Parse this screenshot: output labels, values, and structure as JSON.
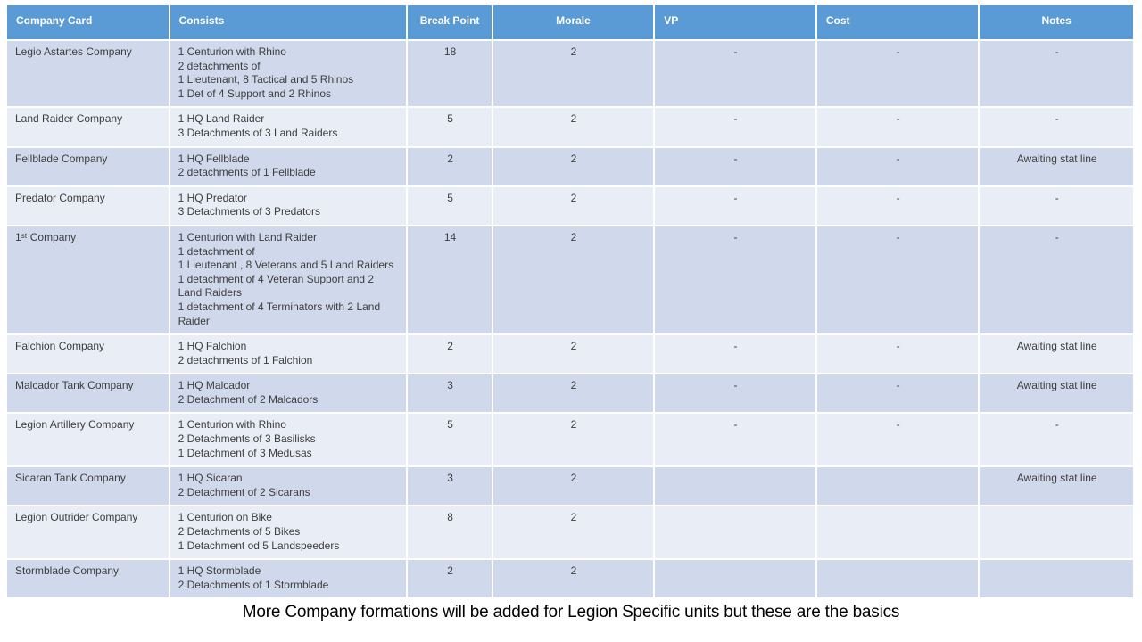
{
  "table": {
    "columns": [
      "Company Card",
      "Consists",
      "Break Point",
      "Morale",
      "VP",
      "Cost",
      "Notes"
    ],
    "rows": [
      {
        "company": "Legio Astartes Company",
        "consists": "1 Centurion with Rhino\n2 detachments of\n1 Lieutenant, 8 Tactical and 5 Rhinos\n1 Det of 4 Support and 2 Rhinos",
        "break_point": "18",
        "morale": "2",
        "vp": "-",
        "cost": "-",
        "notes": "-"
      },
      {
        "company": "Land Raider Company",
        "consists": "1 HQ Land Raider\n3 Detachments of 3 Land Raiders",
        "break_point": "5",
        "morale": "2",
        "vp": "-",
        "cost": "-",
        "notes": "-"
      },
      {
        "company": "Fellblade Company",
        "consists": "1 HQ Fellblade\n2 detachments of 1 Fellblade",
        "break_point": "2",
        "morale": "2",
        "vp": "-",
        "cost": "-",
        "notes": "Awaiting stat line"
      },
      {
        "company": "Predator Company",
        "consists": "1 HQ Predator\n3 Detachments of 3 Predators",
        "break_point": "5",
        "morale": "2",
        "vp": "-",
        "cost": "-",
        "notes": "-"
      },
      {
        "company": "1ˢᵗ Company",
        "consists": "1 Centurion with Land Raider\n1 detachment of\n1 Lieutenant , 8 Veterans and 5 Land Raiders\n1 detachment of 4 Veteran Support and 2 Land Raiders\n1 detachment of 4 Terminators with 2 Land Raider",
        "break_point": "14",
        "morale": "2",
        "vp": "-",
        "cost": "-",
        "notes": "-"
      },
      {
        "company": "Falchion Company",
        "consists": "1 HQ Falchion\n2 detachments of 1 Falchion",
        "break_point": "2",
        "morale": "2",
        "vp": "-",
        "cost": "-",
        "notes": "Awaiting stat line"
      },
      {
        "company": "Malcador Tank Company",
        "consists": "1 HQ Malcador\n2 Detachment of 2 Malcadors",
        "break_point": "3",
        "morale": "2",
        "vp": "-",
        "cost": "-",
        "notes": "Awaiting stat line"
      },
      {
        "company": "Legion Artillery Company",
        "consists": "1 Centurion with Rhino\n2 Detachments of 3 Basilisks\n1 Detachment of 3 Medusas",
        "break_point": "5",
        "morale": "2",
        "vp": "-",
        "cost": "-",
        "notes": "-"
      },
      {
        "company": "Sicaran Tank Company",
        "consists": "1 HQ Sicaran\n2 Detachment of 2 Sicarans",
        "break_point": "3",
        "morale": "2",
        "vp": "",
        "cost": "",
        "notes": "Awaiting stat line"
      },
      {
        "company": "Legion Outrider Company",
        "consists": "1 Centurion on Bike\n2 Detachments of 5 Bikes\n1 Detachment od 5 Landspeeders",
        "break_point": "8",
        "morale": "2",
        "vp": "",
        "cost": "",
        "notes": ""
      },
      {
        "company": "Stormblade Company",
        "consists": "1 HQ Stormblade\n2 Detachments of 1 Stormblade",
        "break_point": "2",
        "morale": "2",
        "vp": "",
        "cost": "",
        "notes": ""
      }
    ]
  },
  "caption": "More Company formations will be added for Legion Specific units but these are the basics",
  "colors": {
    "header_bg": "#5B9BD5",
    "header_text": "#FFFFFF",
    "row_band_dark": "#D0D9EB",
    "row_band_light": "#E9EDF5",
    "grid_line": "#FFFFFF",
    "body_text": "#3D3D3D"
  }
}
